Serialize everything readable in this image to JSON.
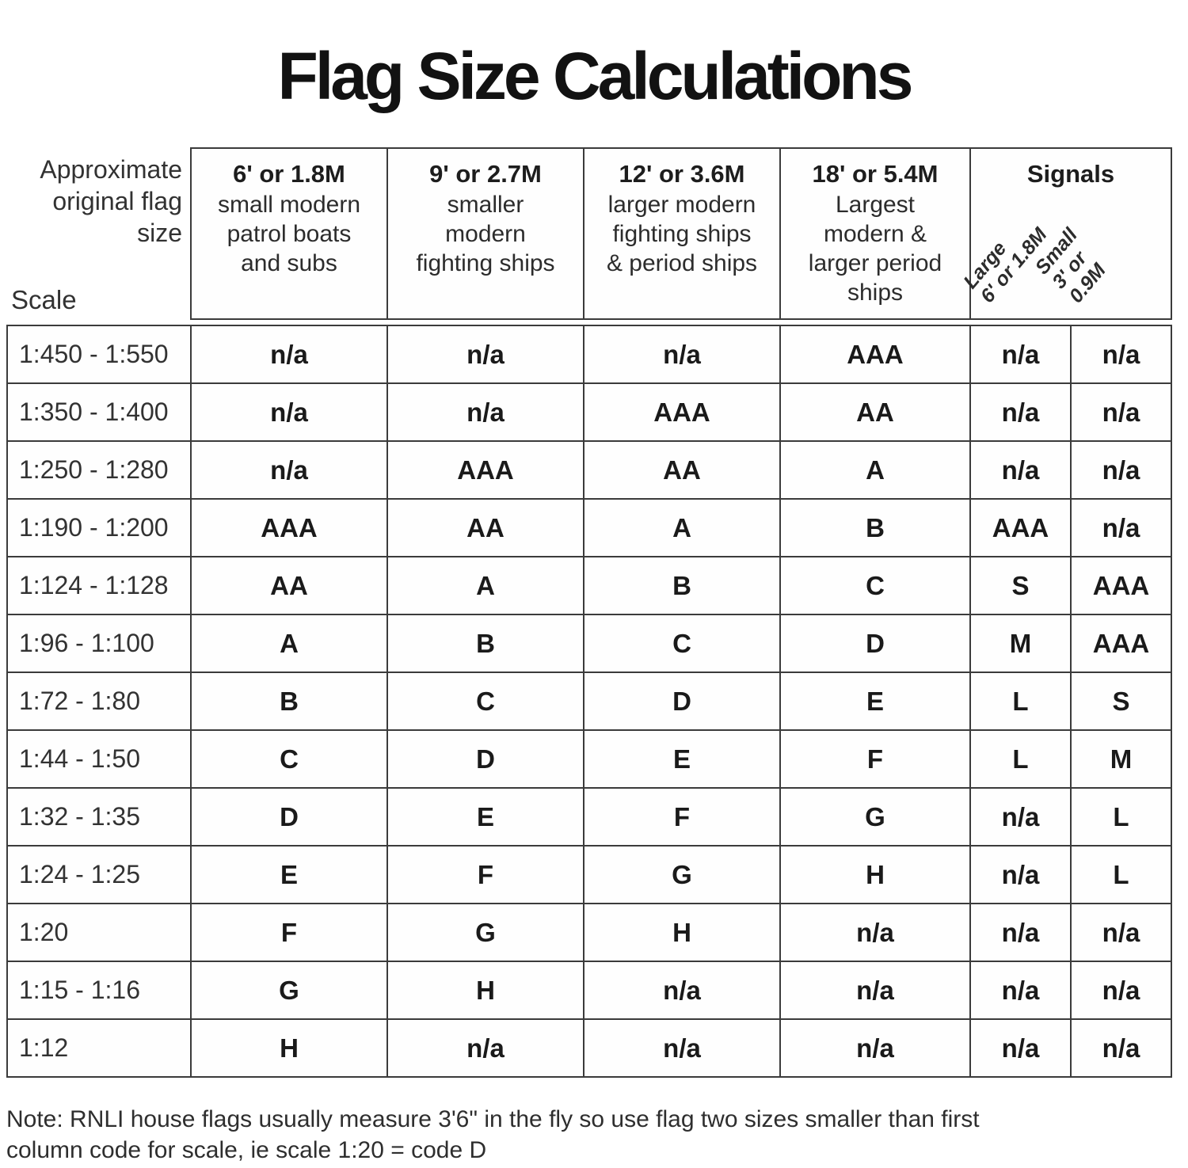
{
  "title": "Flag Size Calculations",
  "header": {
    "left_top": "Approximate\noriginal flag\nsize",
    "left_bottom": "Scale",
    "columns": [
      {
        "size": "6' or 1.8M",
        "desc": "small modern\npatrol boats\nand subs"
      },
      {
        "size": "9' or 2.7M",
        "desc": "smaller\nmodern\nfighting ships"
      },
      {
        "size": "12' or 3.6M",
        "desc": "larger modern\nfighting ships\n& period ships"
      },
      {
        "size": "18' or 5.4M",
        "desc": "Largest\nmodern &\nlarger period\nships"
      }
    ],
    "signals": {
      "label": "Signals",
      "sub_large": "Large\n6' or 1.8M",
      "sub_small": "Small\n3' or 0.9M"
    }
  },
  "table": {
    "rows": [
      {
        "scale": "1:450 - 1:550",
        "values": [
          "n/a",
          "n/a",
          "n/a",
          "AAA",
          "n/a",
          "n/a"
        ]
      },
      {
        "scale": "1:350 - 1:400",
        "values": [
          "n/a",
          "n/a",
          "AAA",
          "AA",
          "n/a",
          "n/a"
        ]
      },
      {
        "scale": "1:250 - 1:280",
        "values": [
          "n/a",
          "AAA",
          "AA",
          "A",
          "n/a",
          "n/a"
        ]
      },
      {
        "scale": "1:190 - 1:200",
        "values": [
          "AAA",
          "AA",
          "A",
          "B",
          "AAA",
          "n/a"
        ]
      },
      {
        "scale": "1:124 - 1:128",
        "values": [
          "AA",
          "A",
          "B",
          "C",
          "S",
          "AAA"
        ]
      },
      {
        "scale": "1:96 - 1:100",
        "values": [
          "A",
          "B",
          "C",
          "D",
          "M",
          "AAA"
        ]
      },
      {
        "scale": "1:72 - 1:80",
        "values": [
          "B",
          "C",
          "D",
          "E",
          "L",
          "S"
        ]
      },
      {
        "scale": "1:44 - 1:50",
        "values": [
          "C",
          "D",
          "E",
          "F",
          "L",
          "M"
        ]
      },
      {
        "scale": "1:32 - 1:35",
        "values": [
          "D",
          "E",
          "F",
          "G",
          "n/a",
          "L"
        ]
      },
      {
        "scale": "1:24 - 1:25",
        "values": [
          "E",
          "F",
          "G",
          "H",
          "n/a",
          "L"
        ]
      },
      {
        "scale": "1:20",
        "values": [
          "F",
          "G",
          "H",
          "n/a",
          "n/a",
          "n/a"
        ]
      },
      {
        "scale": "1:15 - 1:16",
        "values": [
          "G",
          "H",
          "n/a",
          "n/a",
          "n/a",
          "n/a"
        ]
      },
      {
        "scale": "1:12",
        "values": [
          "H",
          "n/a",
          "n/a",
          "n/a",
          "n/a",
          "n/a"
        ]
      }
    ]
  },
  "note": "Note: RNLI house flags usually measure 3'6\" in the fly so use flag two sizes smaller than first\ncolumn code for scale,  ie scale 1:20 = code D",
  "colors": {
    "border": "#3b3b3b",
    "text": "#1a1a1a",
    "background": "#ffffff"
  }
}
